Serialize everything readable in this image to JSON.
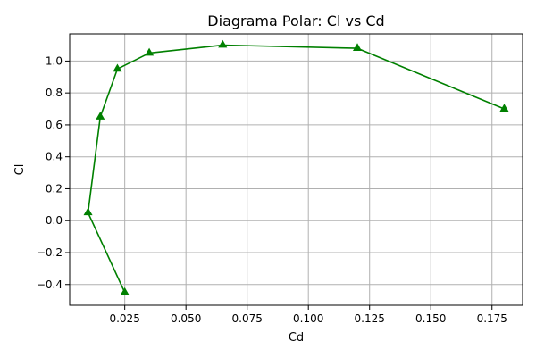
{
  "chart_data": {
    "type": "line",
    "title": "Diagrama Polar: Cl vs Cd",
    "xlabel": "Cd",
    "ylabel": "Cl",
    "xlim": [
      0.0025,
      0.1875
    ],
    "ylim": [
      -0.53,
      1.17
    ],
    "x_ticks": [
      0.025,
      0.05,
      0.075,
      0.1,
      0.125,
      0.15,
      0.175
    ],
    "x_tick_labels": [
      "0.025",
      "0.050",
      "0.075",
      "0.100",
      "0.125",
      "0.150",
      "0.175"
    ],
    "y_ticks": [
      -0.4,
      -0.2,
      0.0,
      0.2,
      0.4,
      0.6,
      0.8,
      1.0
    ],
    "y_tick_labels": [
      "−0.4",
      "−0.2",
      "0.0",
      "0.2",
      "0.4",
      "0.6",
      "0.8",
      "1.0"
    ],
    "grid": true,
    "series": [
      {
        "color": "#008000",
        "marker": "triangle-up",
        "x": [
          0.025,
          0.01,
          0.015,
          0.022,
          0.035,
          0.065,
          0.12,
          0.18
        ],
        "y": [
          -0.45,
          0.05,
          0.65,
          0.95,
          1.05,
          1.1,
          1.08,
          0.7
        ]
      }
    ]
  }
}
